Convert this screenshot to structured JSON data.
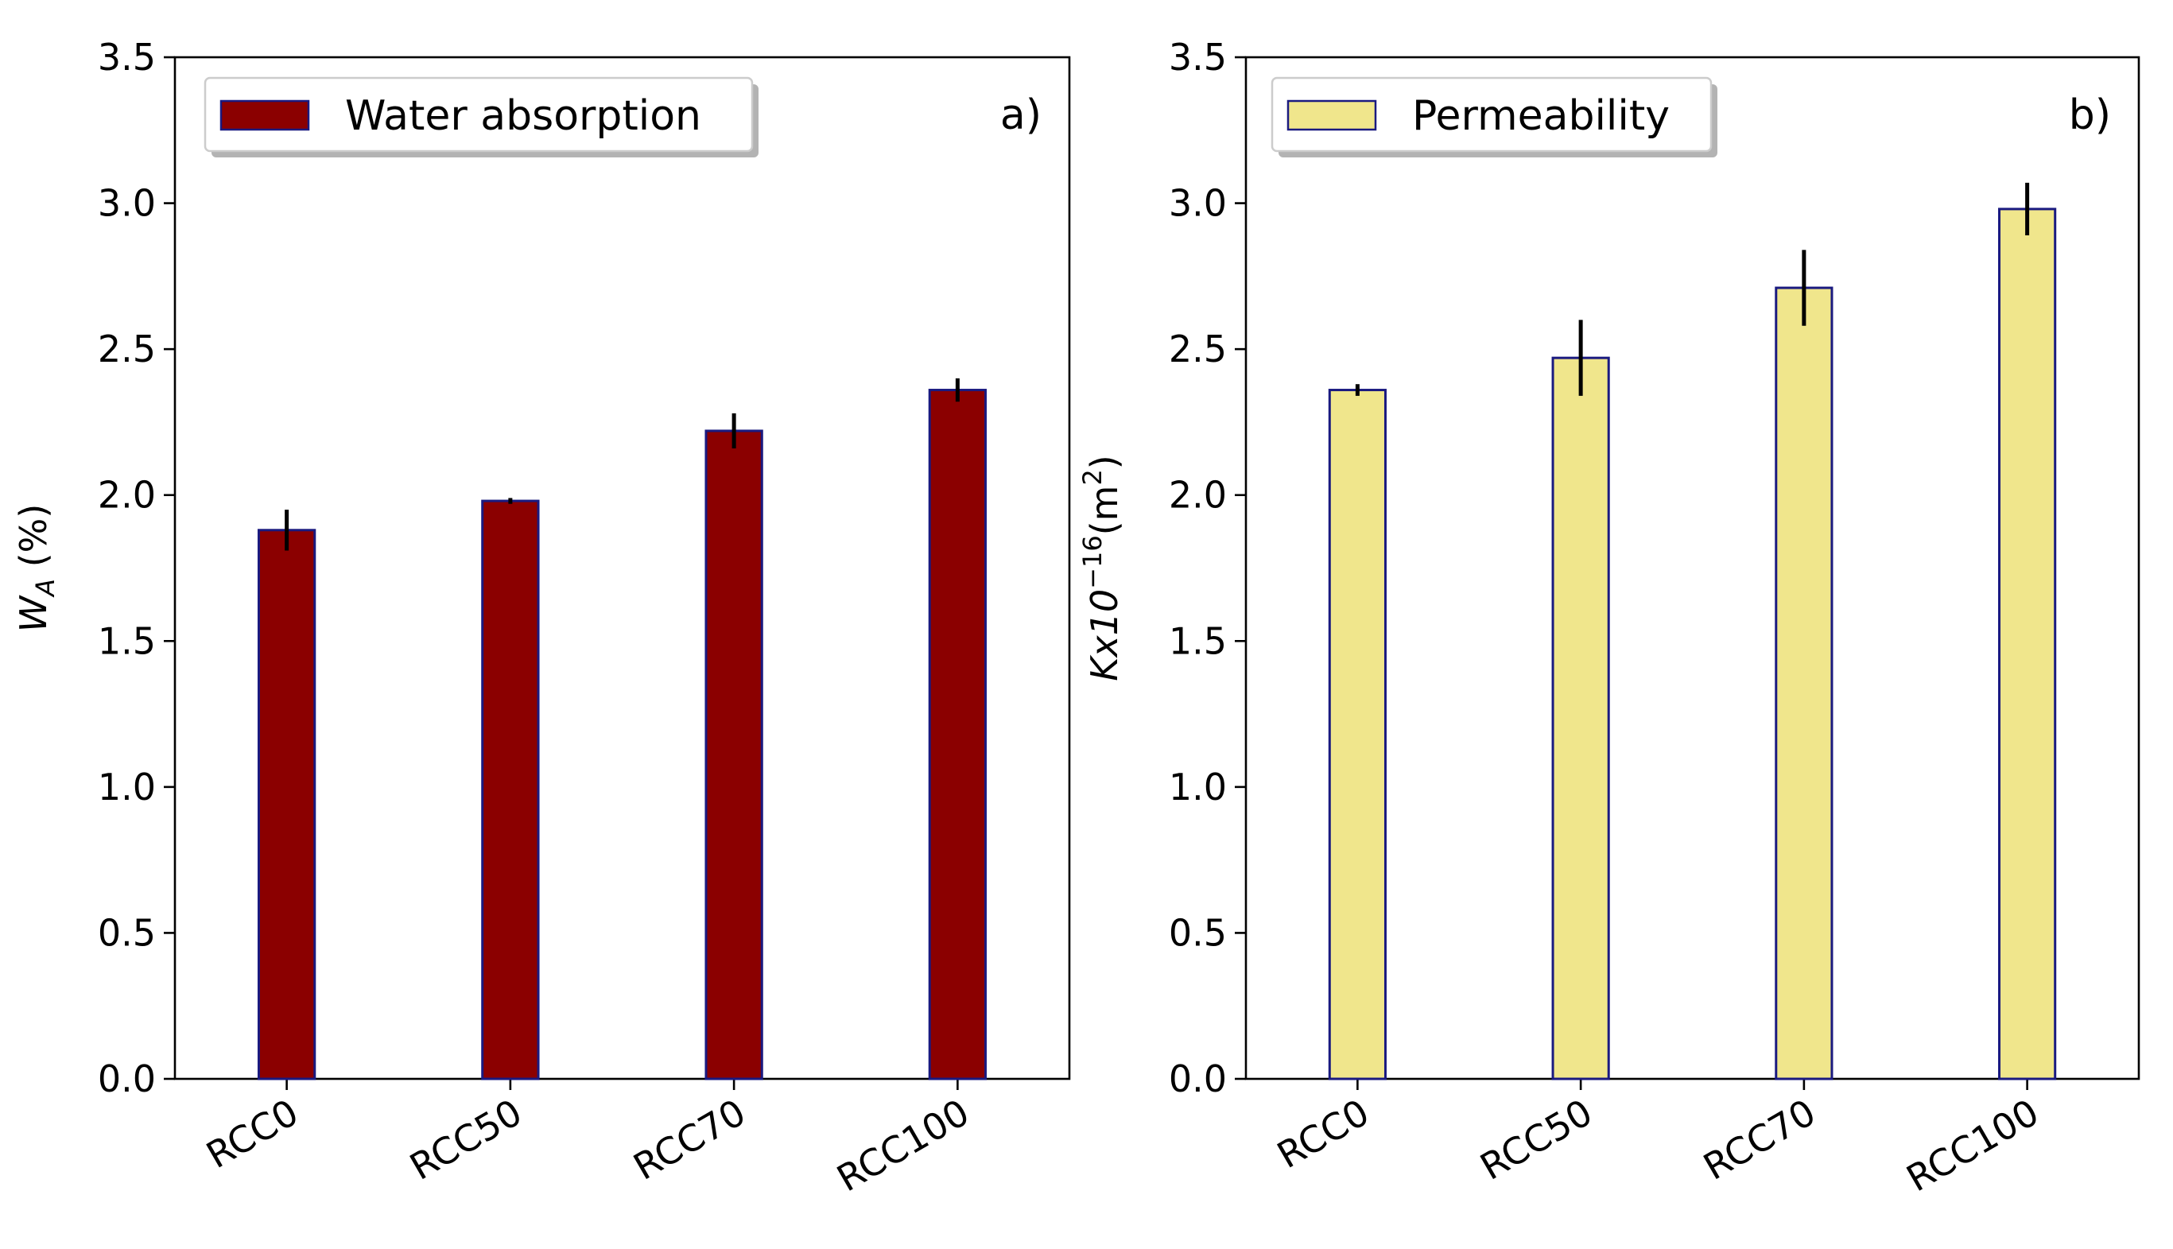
{
  "chart_data": [
    {
      "type": "bar",
      "panel_tag": "a)",
      "categories": [
        "RCC0",
        "RCC50",
        "RCC70",
        "RCC100"
      ],
      "series": [
        {
          "name": "Water absorption",
          "values": [
            1.88,
            1.98,
            2.22,
            2.36
          ],
          "errors": [
            0.07,
            0.01,
            0.06,
            0.04
          ],
          "color": "#8b0000",
          "edge_color": "#1a1a80"
        }
      ],
      "xlabel": "",
      "ylabel": "W_A (%)",
      "ylabel_main": "W",
      "ylabel_sub": "A",
      "ylabel_rest": " (%)",
      "ylim": [
        0,
        3.5
      ],
      "yticks": [
        "0.0",
        "0.5",
        "1.0",
        "1.5",
        "2.0",
        "2.5",
        "3.0",
        "3.5"
      ],
      "legend_position": "top-left",
      "grid": false
    },
    {
      "type": "bar",
      "panel_tag": "b)",
      "categories": [
        "RCC0",
        "RCC50",
        "RCC70",
        "RCC100"
      ],
      "series": [
        {
          "name": "Permeability",
          "values": [
            2.36,
            2.47,
            2.71,
            2.98
          ],
          "errors": [
            0.02,
            0.13,
            0.13,
            0.09
          ],
          "color": "#f0e68c",
          "edge_color": "#1a1a80"
        }
      ],
      "xlabel": "",
      "ylabel": "Kx10^-16 (m^2)",
      "ylabel_main": "Kx10",
      "ylabel_sup": "−16",
      "ylabel_rest": "(m",
      "ylabel_sup2": "2",
      "ylabel_end": ")",
      "ylim": [
        0,
        3.5
      ],
      "yticks": [
        "0.0",
        "0.5",
        "1.0",
        "1.5",
        "2.0",
        "2.5",
        "3.0",
        "3.5"
      ],
      "legend_position": "top-left",
      "grid": false
    }
  ]
}
